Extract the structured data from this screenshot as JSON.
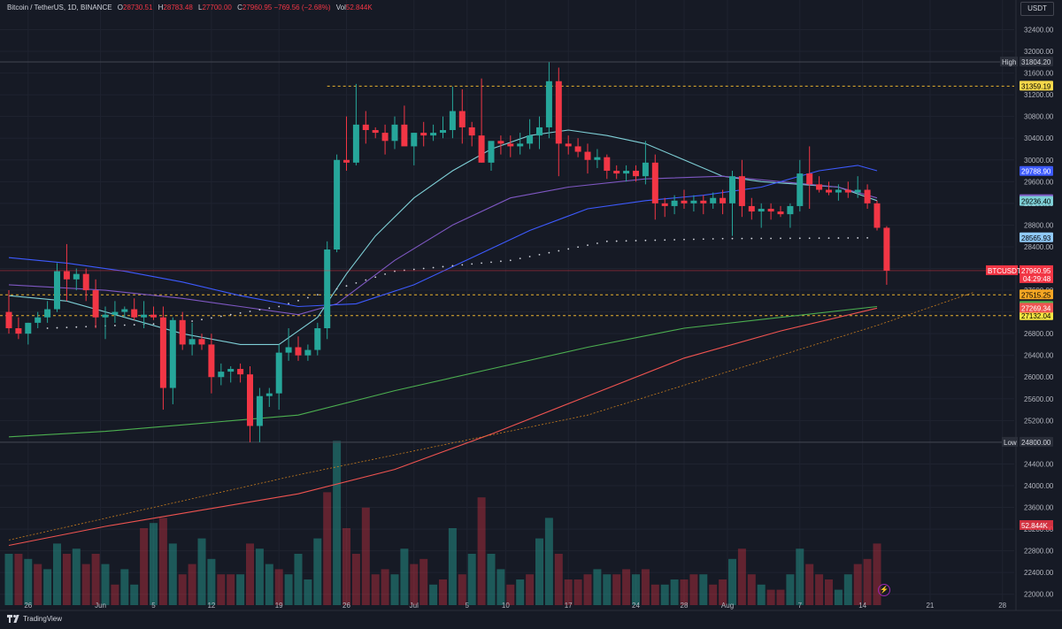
{
  "header": {
    "title": "Bitcoin / TetherUS, 1D, BINANCE",
    "open_label": "O",
    "open": "28730.51",
    "high_label": "H",
    "high": "28783.48",
    "low_label": "L",
    "low": "27700.00",
    "close_label": "C",
    "close": "27960.95",
    "change": "−769.56 (−2.68%)",
    "vol_label": "Vol",
    "vol": "52.844K"
  },
  "currency": "USDT",
  "logo_text": "TradingView",
  "colors": {
    "background": "#161a25",
    "up": "#26a69a",
    "down": "#f23645",
    "ma_fast": "#7ecfd6",
    "ma_mid": "#7e57c2",
    "ma_slow": "#3d5afe",
    "ma_200": "#4caf50",
    "ma_red": "#ef5350",
    "trend": "#c77c1e",
    "dashed_level": "#e8b22e"
  },
  "chart_data": {
    "type": "candlestick",
    "symbol": "BTCUSDT",
    "interval": "1D",
    "ylim": [
      21800,
      32750
    ],
    "y_ticks": [
      22000,
      22400,
      22800,
      23200,
      23600,
      24000,
      24400,
      24800,
      25200,
      25600,
      26000,
      26400,
      26800,
      27200,
      27600,
      28000,
      28400,
      28800,
      29200,
      29600,
      30000,
      30400,
      30800,
      31200,
      31600,
      32000,
      32400
    ],
    "x_ticks": [
      "26",
      "Jun",
      "5",
      "12",
      "19",
      "26",
      "Jul",
      "5",
      "10",
      "17",
      "24",
      "28",
      "Aug",
      "7",
      "14",
      "21",
      "28"
    ],
    "candles": [
      [
        27200,
        27600,
        26800,
        26900
      ],
      [
        26900,
        27100,
        26700,
        26800
      ],
      [
        26800,
        27000,
        26600,
        27000
      ],
      [
        27000,
        27200,
        26900,
        27100
      ],
      [
        27100,
        27400,
        27000,
        27250
      ],
      [
        27250,
        28100,
        27200,
        27950
      ],
      [
        27950,
        28450,
        27400,
        27800
      ],
      [
        27800,
        28000,
        27600,
        27900
      ],
      [
        27900,
        28000,
        27400,
        27600
      ],
      [
        27600,
        27800,
        26900,
        27100
      ],
      [
        27100,
        27300,
        26700,
        27150
      ],
      [
        27150,
        27400,
        27000,
        27200
      ],
      [
        27200,
        27300,
        27100,
        27250
      ],
      [
        27250,
        27450,
        27050,
        27100
      ],
      [
        27100,
        27400,
        26900,
        27150
      ],
      [
        27150,
        27300,
        27050,
        27100
      ],
      [
        27100,
        27300,
        25400,
        25800
      ],
      [
        25800,
        27100,
        25500,
        27050
      ],
      [
        27050,
        27200,
        26500,
        26600
      ],
      [
        26600,
        27000,
        26400,
        26700
      ],
      [
        26700,
        26800,
        26500,
        26600
      ],
      [
        26600,
        26800,
        25700,
        26000
      ],
      [
        26000,
        26250,
        25850,
        26100
      ],
      [
        26100,
        26200,
        25900,
        26150
      ],
      [
        26150,
        26250,
        25900,
        26050
      ],
      [
        26050,
        26200,
        24800,
        25100
      ],
      [
        25100,
        25800,
        24800,
        25650
      ],
      [
        25650,
        25800,
        25450,
        25700
      ],
      [
        25700,
        26600,
        25400,
        26450
      ],
      [
        26450,
        26900,
        26300,
        26550
      ],
      [
        26550,
        26750,
        26300,
        26400
      ],
      [
        26400,
        26600,
        26300,
        26500
      ],
      [
        26500,
        27000,
        26400,
        26900
      ],
      [
        26900,
        28500,
        26700,
        28350
      ],
      [
        28350,
        30100,
        28300,
        30000
      ],
      [
        30000,
        30800,
        29800,
        29950
      ],
      [
        29950,
        31400,
        29900,
        30650
      ],
      [
        30650,
        30900,
        30300,
        30550
      ],
      [
        30550,
        30600,
        30400,
        30500
      ],
      [
        30500,
        30650,
        30100,
        30350
      ],
      [
        30350,
        30800,
        30200,
        30650
      ],
      [
        30650,
        31000,
        30300,
        30250
      ],
      [
        30250,
        30500,
        29900,
        30500
      ],
      [
        30500,
        30700,
        30250,
        30450
      ],
      [
        30450,
        30650,
        30350,
        30500
      ],
      [
        30500,
        30800,
        30400,
        30550
      ],
      [
        30550,
        31350,
        30400,
        30900
      ],
      [
        30900,
        31300,
        30300,
        30600
      ],
      [
        30600,
        30700,
        30250,
        30450
      ],
      [
        30450,
        31500,
        29950,
        29950
      ],
      [
        29950,
        30300,
        29800,
        30350
      ],
      [
        30350,
        30450,
        30100,
        30300
      ],
      [
        30300,
        30450,
        30050,
        30250
      ],
      [
        30250,
        30500,
        30100,
        30300
      ],
      [
        30300,
        30750,
        30200,
        30450
      ],
      [
        30450,
        30800,
        30200,
        30600
      ],
      [
        30600,
        31800,
        30400,
        31450
      ],
      [
        31450,
        31700,
        29700,
        30300
      ],
      [
        30300,
        30450,
        30100,
        30250
      ],
      [
        30250,
        30400,
        30050,
        30150
      ],
      [
        30150,
        30300,
        29750,
        30000
      ],
      [
        30000,
        30200,
        29850,
        30050
      ],
      [
        30050,
        30100,
        29650,
        29800
      ],
      [
        29800,
        29900,
        29650,
        29750
      ],
      [
        29750,
        29900,
        29600,
        29800
      ],
      [
        29800,
        29900,
        29600,
        29700
      ],
      [
        29700,
        30350,
        29550,
        29950
      ],
      [
        29950,
        30100,
        28900,
        29200
      ],
      [
        29200,
        29300,
        28950,
        29150
      ],
      [
        29150,
        29350,
        29000,
        29250
      ],
      [
        29250,
        29450,
        29100,
        29200
      ],
      [
        29200,
        29350,
        29050,
        29250
      ],
      [
        29250,
        29350,
        29000,
        29200
      ],
      [
        29200,
        29400,
        29100,
        29300
      ],
      [
        29300,
        29450,
        29000,
        29200
      ],
      [
        29200,
        29800,
        28600,
        29700
      ],
      [
        29700,
        30000,
        28950,
        29150
      ],
      [
        29150,
        29300,
        28900,
        29050
      ],
      [
        29050,
        29200,
        28750,
        29100
      ],
      [
        29100,
        29200,
        28900,
        29050
      ],
      [
        29050,
        29150,
        28950,
        29000
      ],
      [
        29000,
        29200,
        28750,
        29150
      ],
      [
        29150,
        30000,
        29050,
        29750
      ],
      [
        29750,
        30250,
        29100,
        29550
      ],
      [
        29550,
        29700,
        29400,
        29450
      ],
      [
        29450,
        29600,
        29350,
        29400
      ],
      [
        29400,
        29550,
        29250,
        29450
      ],
      [
        29450,
        29600,
        29300,
        29400
      ],
      [
        29400,
        29700,
        29300,
        29450
      ],
      [
        29450,
        29550,
        29100,
        29200
      ],
      [
        29200,
        29250,
        28700,
        28750
      ],
      [
        28750,
        28780,
        27700,
        27960
      ]
    ],
    "volumes": [
      [
        1.0,
        0
      ],
      [
        1.0,
        1
      ],
      [
        0.9,
        0
      ],
      [
        0.8,
        1
      ],
      [
        0.7,
        0
      ],
      [
        1.2,
        0
      ],
      [
        1.0,
        1
      ],
      [
        1.1,
        0
      ],
      [
        0.8,
        1
      ],
      [
        1.0,
        1
      ],
      [
        0.8,
        0
      ],
      [
        0.4,
        1
      ],
      [
        0.7,
        0
      ],
      [
        0.4,
        0
      ],
      [
        1.5,
        1
      ],
      [
        1.6,
        0
      ],
      [
        1.7,
        1
      ],
      [
        1.2,
        0
      ],
      [
        0.6,
        1
      ],
      [
        0.8,
        1
      ],
      [
        1.3,
        0
      ],
      [
        0.9,
        0
      ],
      [
        0.6,
        1
      ],
      [
        0.6,
        1
      ],
      [
        0.6,
        0
      ],
      [
        1.2,
        1
      ],
      [
        1.1,
        0
      ],
      [
        0.8,
        0
      ],
      [
        0.7,
        1
      ],
      [
        0.6,
        0
      ],
      [
        1.0,
        0
      ],
      [
        0.5,
        0
      ],
      [
        1.3,
        0
      ],
      [
        2.2,
        1
      ],
      [
        3.2,
        0
      ],
      [
        1.5,
        1
      ],
      [
        1.0,
        1
      ],
      [
        1.9,
        1
      ],
      [
        0.6,
        1
      ],
      [
        0.7,
        1
      ],
      [
        0.6,
        0
      ],
      [
        1.1,
        0
      ],
      [
        0.8,
        1
      ],
      [
        0.9,
        1
      ],
      [
        0.4,
        0
      ],
      [
        0.5,
        1
      ],
      [
        1.5,
        0
      ],
      [
        0.6,
        1
      ],
      [
        1.0,
        0
      ],
      [
        2.1,
        1
      ],
      [
        1.0,
        0
      ],
      [
        0.7,
        0
      ],
      [
        0.4,
        1
      ],
      [
        0.5,
        0
      ],
      [
        0.6,
        1
      ],
      [
        1.3,
        0
      ],
      [
        1.7,
        0
      ],
      [
        1.0,
        1
      ],
      [
        0.5,
        1
      ],
      [
        0.5,
        1
      ],
      [
        0.6,
        1
      ],
      [
        0.7,
        0
      ],
      [
        0.6,
        0
      ],
      [
        0.6,
        1
      ],
      [
        0.7,
        1
      ],
      [
        0.6,
        0
      ],
      [
        0.7,
        1
      ],
      [
        0.4,
        1
      ],
      [
        0.4,
        0
      ],
      [
        0.5,
        0
      ],
      [
        0.5,
        1
      ],
      [
        0.6,
        1
      ],
      [
        0.6,
        0
      ],
      [
        0.4,
        1
      ],
      [
        0.5,
        1
      ],
      [
        0.9,
        0
      ],
      [
        1.1,
        1
      ],
      [
        0.6,
        1
      ],
      [
        0.4,
        0
      ],
      [
        0.3,
        1
      ],
      [
        0.3,
        1
      ],
      [
        0.6,
        0
      ],
      [
        1.1,
        0
      ],
      [
        0.8,
        1
      ],
      [
        0.6,
        1
      ],
      [
        0.5,
        1
      ],
      [
        0.3,
        0
      ],
      [
        0.6,
        0
      ],
      [
        0.8,
        1
      ],
      [
        0.9,
        1
      ],
      [
        1.2,
        1
      ]
    ],
    "volume_last": "52.844K",
    "lines": [
      {
        "name": "ma_fast",
        "color": "#7ecfd6",
        "points": [
          [
            0,
            27500
          ],
          [
            6,
            27400
          ],
          [
            12,
            27100
          ],
          [
            18,
            26800
          ],
          [
            24,
            26600
          ],
          [
            28,
            26600
          ],
          [
            32,
            27100
          ],
          [
            35,
            27900
          ],
          [
            38,
            28600
          ],
          [
            42,
            29300
          ],
          [
            46,
            29800
          ],
          [
            50,
            30200
          ],
          [
            54,
            30450
          ],
          [
            58,
            30550
          ],
          [
            62,
            30450
          ],
          [
            66,
            30300
          ],
          [
            70,
            30000
          ],
          [
            74,
            29700
          ],
          [
            78,
            29600
          ],
          [
            82,
            29550
          ],
          [
            86,
            29500
          ],
          [
            90,
            29250
          ]
        ]
      },
      {
        "name": "ma_mid",
        "color": "#7e57c2",
        "points": [
          [
            0,
            27700
          ],
          [
            10,
            27600
          ],
          [
            18,
            27450
          ],
          [
            24,
            27300
          ],
          [
            30,
            27150
          ],
          [
            34,
            27350
          ],
          [
            40,
            28150
          ],
          [
            46,
            28800
          ],
          [
            52,
            29300
          ],
          [
            58,
            29500
          ],
          [
            66,
            29650
          ],
          [
            74,
            29700
          ],
          [
            80,
            29600
          ],
          [
            86,
            29500
          ],
          [
            90,
            29300
          ]
        ]
      },
      {
        "name": "ma_slow",
        "color": "#3d5afe",
        "points": [
          [
            0,
            28200
          ],
          [
            6,
            28100
          ],
          [
            12,
            27950
          ],
          [
            18,
            27750
          ],
          [
            24,
            27500
          ],
          [
            30,
            27300
          ],
          [
            36,
            27350
          ],
          [
            42,
            27700
          ],
          [
            48,
            28200
          ],
          [
            54,
            28700
          ],
          [
            60,
            29100
          ],
          [
            66,
            29250
          ],
          [
            72,
            29350
          ],
          [
            78,
            29500
          ],
          [
            84,
            29800
          ],
          [
            88,
            29900
          ],
          [
            90,
            29800
          ]
        ]
      },
      {
        "name": "ma_200",
        "color": "#4caf50",
        "points": [
          [
            0,
            24900
          ],
          [
            10,
            25000
          ],
          [
            20,
            25150
          ],
          [
            30,
            25300
          ],
          [
            40,
            25750
          ],
          [
            50,
            26150
          ],
          [
            60,
            26550
          ],
          [
            70,
            26900
          ],
          [
            80,
            27100
          ],
          [
            90,
            27300
          ]
        ]
      },
      {
        "name": "ma_red",
        "color": "#ef5350",
        "points": [
          [
            0,
            22900
          ],
          [
            10,
            23250
          ],
          [
            20,
            23550
          ],
          [
            30,
            23850
          ],
          [
            40,
            24300
          ],
          [
            50,
            24950
          ],
          [
            60,
            25650
          ],
          [
            70,
            26350
          ],
          [
            80,
            26850
          ],
          [
            90,
            27270
          ]
        ]
      },
      {
        "name": "trend",
        "color": "#c77c1e",
        "points": [
          [
            0,
            23000
          ],
          [
            30,
            24200
          ],
          [
            60,
            25300
          ],
          [
            90,
            26950
          ],
          [
            100,
            27560
          ]
        ]
      }
    ],
    "dots": [
      [
        4,
        26900
      ],
      [
        18,
        27000
      ],
      [
        28,
        27300
      ],
      [
        40,
        27950
      ],
      [
        52,
        28150
      ],
      [
        62,
        28500
      ],
      [
        74,
        28550
      ],
      [
        90,
        28565
      ]
    ],
    "levels": [
      {
        "price": 31359.19,
        "label": "31359.19",
        "color": "#e8b22e",
        "dashed": true,
        "bg": "#f5d84a",
        "fg": "#000"
      },
      {
        "price": 27515.25,
        "label": "27515.25",
        "color": "#e8b22e",
        "dashed": true,
        "bg": "#f5a623",
        "fg": "#000"
      },
      {
        "price": 27132.04,
        "label": "27132.04",
        "color": "#e8b22e",
        "dashed": true,
        "bg": "#f5e642",
        "fg": "#000"
      }
    ],
    "high": {
      "label": "High",
      "value": "31804.20"
    },
    "low": {
      "label": "Low",
      "value": "24800.00"
    },
    "price_tags": [
      {
        "value": "29788.90",
        "price": 29788.9,
        "bg": "#3d5afe",
        "fg": "#fff"
      },
      {
        "value": "29269.99",
        "price": 29269.99,
        "bg": "#7e57c2",
        "fg": "#fff"
      },
      {
        "value": "29236.40",
        "price": 29236.4,
        "bg": "#7ecfd6",
        "fg": "#000"
      },
      {
        "value": "28565.93",
        "price": 28565.93,
        "bg": "#90caf9",
        "fg": "#000"
      },
      {
        "value": "27304.02",
        "price": 27304.02,
        "bg": "#4caf50",
        "fg": "#000"
      },
      {
        "value": "27269.34",
        "price": 27269.34,
        "bg": "#ef5350",
        "fg": "#fff"
      }
    ],
    "last_price": {
      "symbol": "BTCUSDT",
      "value": "27960.95",
      "countdown": "04:29:48",
      "price": 27960.95
    }
  }
}
